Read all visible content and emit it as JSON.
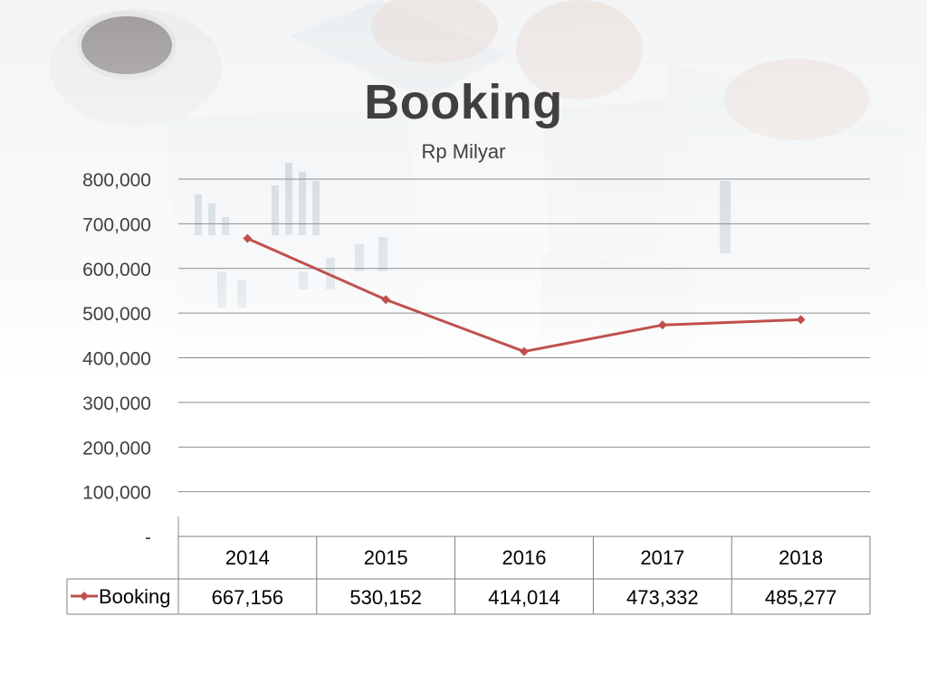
{
  "chart_data": {
    "type": "line",
    "title": "Booking",
    "subtitle": "Rp Milyar",
    "categories": [
      "2014",
      "2015",
      "2016",
      "2017",
      "2018"
    ],
    "series": [
      {
        "name": "Booking",
        "values": [
          667156,
          530152,
          414014,
          473332,
          485277
        ],
        "value_labels": [
          "667,156",
          "530,152",
          "414,014",
          "473,332",
          "485,277"
        ],
        "color": "#c0504d"
      }
    ],
    "ylim": [
      0,
      800000
    ],
    "ytick_labels": [
      "-",
      "100,000",
      "200,000",
      "300,000",
      "400,000",
      "500,000",
      "600,000",
      "700,000",
      "800,000"
    ],
    "grid": true,
    "legend": "data-table",
    "data_table": true
  }
}
